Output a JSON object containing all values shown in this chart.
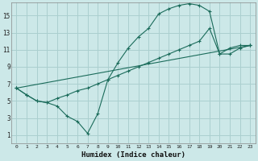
{
  "xlabel": "Humidex (Indice chaleur)",
  "bg_color": "#cce8e8",
  "grid_color": "#aacfcf",
  "line_color": "#1a6b5a",
  "xlim": [
    -0.5,
    23.5
  ],
  "ylim": [
    0,
    16.5
  ],
  "xticks": [
    0,
    1,
    2,
    3,
    4,
    5,
    6,
    7,
    8,
    9,
    10,
    11,
    12,
    13,
    14,
    15,
    16,
    17,
    18,
    19,
    20,
    21,
    22,
    23
  ],
  "yticks": [
    1,
    3,
    5,
    7,
    9,
    11,
    13,
    15
  ],
  "line1_x": [
    0,
    1,
    2,
    3,
    4,
    5,
    6,
    7,
    8,
    9,
    10,
    11,
    12,
    13,
    14,
    15,
    16,
    17,
    18,
    19,
    20,
    21,
    22,
    23
  ],
  "line1_y": [
    6.5,
    5.7,
    5.0,
    4.8,
    4.4,
    3.2,
    2.6,
    1.2,
    3.5,
    7.5,
    9.5,
    11.2,
    12.5,
    13.5,
    15.2,
    15.8,
    16.2,
    16.4,
    16.2,
    15.5,
    10.5,
    11.2,
    11.5,
    11.5
  ],
  "line2_x": [
    0,
    1,
    2,
    3,
    4,
    5,
    6,
    7,
    8,
    9,
    10,
    11,
    12,
    13,
    14,
    15,
    16,
    17,
    18,
    19,
    20,
    21,
    22,
    23
  ],
  "line2_y": [
    6.5,
    5.7,
    5.0,
    4.8,
    5.3,
    5.7,
    6.2,
    6.5,
    7.0,
    7.5,
    8.0,
    8.5,
    9.0,
    9.5,
    10.0,
    10.5,
    11.0,
    11.5,
    12.0,
    13.5,
    10.5,
    10.5,
    11.2,
    11.5
  ],
  "line3_x": [
    0,
    23
  ],
  "line3_y": [
    6.5,
    11.5
  ]
}
